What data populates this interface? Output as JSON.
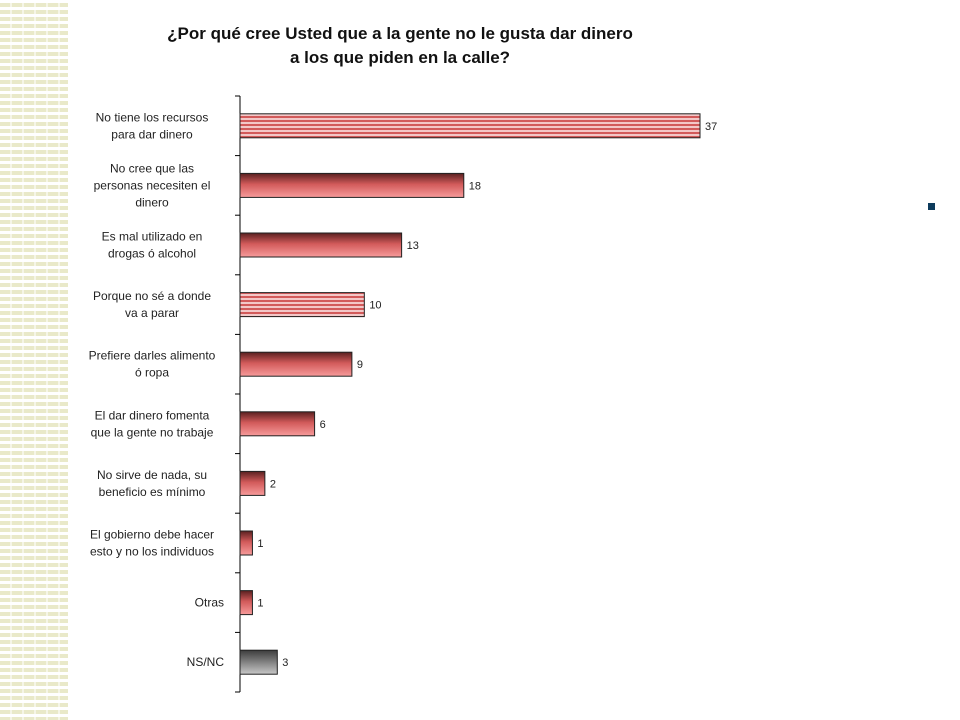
{
  "title_line1": "¿Por qué cree Usted que a la gente no le gusta dar dinero",
  "title_line2": "a los que piden en la calle?",
  "colors": {
    "bar_top": "#5a2020",
    "bar_mid": "#d25a5a",
    "bar_bottom": "#f79b9b",
    "bar_hatch_light": "#f3c7c7",
    "nsnc_top": "#3c3c3c",
    "nsnc_bottom": "#c8c8c8",
    "bullet": "#0d3b5c",
    "stripe": "#e9e9c9"
  },
  "chart_data": {
    "type": "bar",
    "orientation": "horizontal",
    "categories": [
      "No tiene los recursos\npara dar dinero",
      "No cree que las\npersonas necesiten el\ndinero",
      "Es mal utilizado en\ndrogas ó alcohol",
      "Porque no sé a donde\nva a parar",
      "Prefiere darles alimento\nó ropa",
      "El dar dinero fomenta\nque la gente no trabaje",
      "No sirve de nada, su\nbeneficio es mínimo",
      "El gobierno debe hacer\nesto y no los individuos",
      "Otras",
      "NS/NC"
    ],
    "values": [
      37,
      18,
      13,
      10,
      9,
      6,
      2,
      1,
      1,
      3
    ],
    "hatched": [
      true,
      false,
      false,
      true,
      false,
      false,
      false,
      false,
      false,
      false
    ],
    "neutral": [
      false,
      false,
      false,
      false,
      false,
      false,
      false,
      false,
      false,
      true
    ],
    "xlim": [
      0,
      40
    ],
    "grid": false,
    "legend": "none"
  }
}
